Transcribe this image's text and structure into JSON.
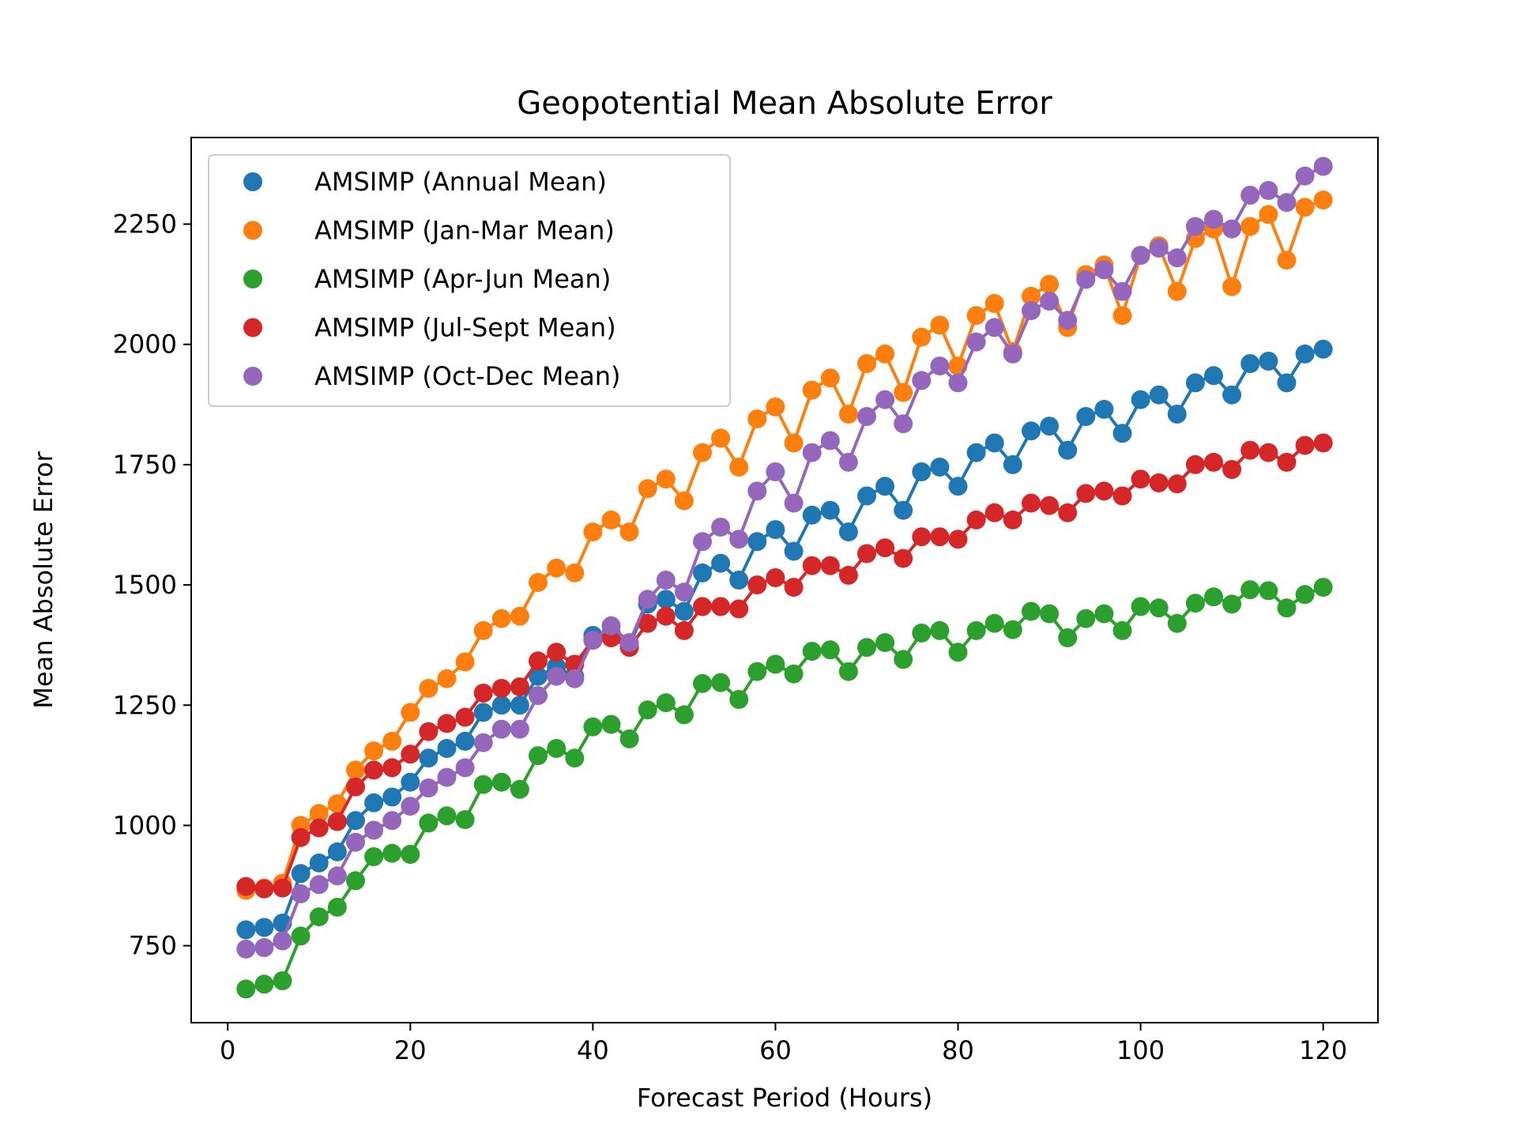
{
  "chart_data": {
    "type": "line",
    "title": "Geopotential Mean Absolute Error",
    "xlabel": "Forecast Period (Hours)",
    "ylabel": "Mean Absolute Error",
    "xlim": [
      -4,
      126
    ],
    "ylim": [
      590,
      2430
    ],
    "xticks": [
      0,
      20,
      40,
      60,
      80,
      100,
      120
    ],
    "yticks": [
      750,
      1000,
      1250,
      1500,
      1750,
      2000,
      2250
    ],
    "grid": false,
    "legend_position": "top-left",
    "x": [
      2,
      4,
      6,
      8,
      10,
      12,
      14,
      16,
      18,
      20,
      22,
      24,
      26,
      28,
      30,
      32,
      34,
      36,
      38,
      40,
      42,
      44,
      46,
      48,
      50,
      52,
      54,
      56,
      58,
      60,
      62,
      64,
      66,
      68,
      70,
      72,
      74,
      76,
      78,
      80,
      82,
      84,
      86,
      88,
      90,
      92,
      94,
      96,
      98,
      100,
      102,
      104,
      106,
      108,
      110,
      112,
      114,
      116,
      118,
      120
    ],
    "series": [
      {
        "name": "AMSIMP (Annual Mean)",
        "color": "#1f77b4",
        "values": [
          783,
          788,
          797,
          900,
          922,
          945,
          1010,
          1047,
          1059,
          1090,
          1140,
          1160,
          1175,
          1235,
          1250,
          1250,
          1310,
          1330,
          1310,
          1395,
          1400,
          1375,
          1460,
          1470,
          1445,
          1525,
          1545,
          1510,
          1590,
          1615,
          1570,
          1645,
          1655,
          1610,
          1685,
          1705,
          1655,
          1735,
          1745,
          1705,
          1775,
          1795,
          1750,
          1820,
          1830,
          1780,
          1850,
          1865,
          1815,
          1885,
          1895,
          1855,
          1920,
          1935,
          1895,
          1960,
          1965,
          1920,
          1980,
          1990
        ]
      },
      {
        "name": "AMSIMP (Jan-Mar Mean)",
        "color": "#ff7f0e",
        "values": [
          865,
          870,
          880,
          1000,
          1025,
          1045,
          1115,
          1155,
          1175,
          1235,
          1285,
          1305,
          1340,
          1405,
          1430,
          1435,
          1505,
          1535,
          1525,
          1610,
          1635,
          1610,
          1700,
          1720,
          1675,
          1775,
          1805,
          1745,
          1845,
          1870,
          1795,
          1905,
          1930,
          1855,
          1960,
          1980,
          1900,
          2015,
          2040,
          1955,
          2060,
          2085,
          1985,
          2100,
          2125,
          2035,
          2145,
          2165,
          2060,
          2185,
          2205,
          2110,
          2220,
          2240,
          2120,
          2245,
          2270,
          2175,
          2285,
          2300
        ]
      },
      {
        "name": "AMSIMP (Apr-Jun Mean)",
        "color": "#2ca02c",
        "values": [
          660,
          670,
          677,
          770,
          810,
          830,
          885,
          935,
          942,
          940,
          1005,
          1020,
          1012,
          1085,
          1090,
          1075,
          1145,
          1160,
          1140,
          1205,
          1210,
          1180,
          1240,
          1255,
          1230,
          1295,
          1297,
          1262,
          1320,
          1335,
          1315,
          1362,
          1365,
          1320,
          1370,
          1380,
          1345,
          1400,
          1405,
          1360,
          1405,
          1420,
          1407,
          1445,
          1440,
          1390,
          1430,
          1440,
          1405,
          1455,
          1452,
          1420,
          1462,
          1475,
          1460,
          1490,
          1488,
          1452,
          1480,
          1495
        ]
      },
      {
        "name": "AMSIMP (Jul-Sept Mean)",
        "color": "#d62728",
        "values": [
          873,
          868,
          870,
          975,
          995,
          1008,
          1080,
          1115,
          1120,
          1148,
          1195,
          1212,
          1225,
          1275,
          1285,
          1288,
          1342,
          1360,
          1335,
          1385,
          1390,
          1370,
          1420,
          1435,
          1405,
          1455,
          1455,
          1450,
          1500,
          1515,
          1495,
          1540,
          1540,
          1520,
          1565,
          1577,
          1555,
          1600,
          1600,
          1595,
          1635,
          1650,
          1635,
          1670,
          1665,
          1650,
          1690,
          1695,
          1685,
          1720,
          1712,
          1710,
          1750,
          1755,
          1740,
          1780,
          1775,
          1755,
          1790,
          1795
        ]
      },
      {
        "name": "AMSIMP (Oct-Dec Mean)",
        "color": "#9467bd",
        "values": [
          743,
          746,
          760,
          858,
          877,
          895,
          965,
          990,
          1010,
          1040,
          1078,
          1100,
          1120,
          1172,
          1200,
          1200,
          1270,
          1310,
          1305,
          1385,
          1415,
          1380,
          1470,
          1510,
          1485,
          1590,
          1620,
          1595,
          1695,
          1735,
          1670,
          1775,
          1800,
          1755,
          1850,
          1885,
          1835,
          1925,
          1955,
          1920,
          2005,
          2035,
          1980,
          2070,
          2090,
          2050,
          2135,
          2155,
          2110,
          2185,
          2200,
          2180,
          2245,
          2260,
          2240,
          2310,
          2320,
          2295,
          2350,
          2370
        ]
      }
    ]
  }
}
